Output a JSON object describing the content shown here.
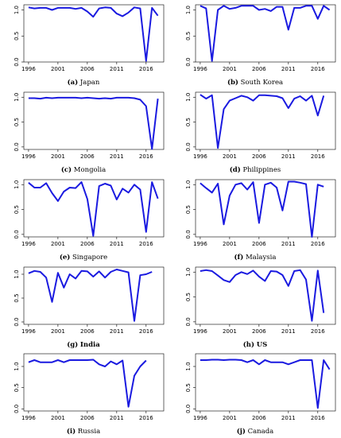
{
  "chart_data": [
    {
      "type": "line",
      "tag": "(a)",
      "caption": "Japan",
      "bold": false,
      "x": [
        1996,
        1997,
        1998,
        1999,
        2000,
        2001,
        2002,
        2003,
        2004,
        2005,
        2006,
        2007,
        2008,
        2009,
        2010,
        2011,
        2012,
        2013,
        2014,
        2015,
        2016,
        2017,
        2018
      ],
      "values": [
        1.05,
        1.03,
        1.04,
        1.04,
        1.0,
        1.04,
        1.04,
        1.04,
        1.02,
        1.04,
        0.97,
        0.87,
        1.03,
        1.05,
        1.04,
        0.93,
        0.88,
        0.95,
        1.05,
        1.03,
        0.02,
        1.04,
        0.89
      ],
      "xticks": [
        1996,
        2001,
        2006,
        2011,
        2016
      ],
      "yticks": [
        "0.0",
        "0.5",
        "1.0"
      ],
      "ylim": [
        0,
        1.1
      ]
    },
    {
      "type": "line",
      "tag": "(b)",
      "caption": "South Korea",
      "bold": false,
      "x": [
        1996,
        1997,
        1998,
        1999,
        2000,
        2001,
        2002,
        2003,
        2004,
        2005,
        2006,
        2007,
        2008,
        2009,
        2010,
        2011,
        2012,
        2013,
        2014,
        2015,
        2016,
        2017,
        2018
      ],
      "values": [
        1.08,
        1.03,
        0.02,
        1.0,
        1.08,
        1.02,
        1.04,
        1.08,
        1.08,
        1.08,
        1.0,
        1.02,
        0.98,
        1.06,
        1.06,
        0.62,
        1.04,
        1.04,
        1.08,
        1.08,
        0.83,
        1.08,
        1.0
      ],
      "xticks": [
        1996,
        2001,
        2006,
        2011,
        2016
      ],
      "yticks": [
        "0.0",
        "0.5",
        "1.0"
      ],
      "ylim": [
        0,
        1.1
      ]
    },
    {
      "type": "line",
      "tag": "(c)",
      "caption": "Mongolia",
      "bold": false,
      "x": [
        1996,
        1997,
        1998,
        1999,
        2000,
        2001,
        2002,
        2003,
        2004,
        2005,
        2006,
        2007,
        2008,
        2009,
        2010,
        2011,
        2012,
        2013,
        2014,
        2015,
        2016,
        2017,
        2018
      ],
      "values": [
        0.98,
        0.98,
        0.97,
        0.99,
        0.98,
        0.99,
        0.99,
        0.99,
        0.99,
        0.98,
        0.99,
        0.98,
        0.97,
        0.98,
        0.97,
        0.99,
        0.99,
        0.99,
        0.98,
        0.95,
        0.82,
        -0.04,
        0.97
      ],
      "xticks": [
        1996,
        2001,
        2006,
        2011,
        2016
      ],
      "yticks": [
        "0.0",
        "0.5",
        "1.0"
      ],
      "ylim": [
        -0.05,
        1.1
      ]
    },
    {
      "type": "line",
      "tag": "(d)",
      "caption": "Philippines",
      "bold": false,
      "x": [
        1996,
        1997,
        1998,
        1999,
        2000,
        2001,
        2002,
        2003,
        2004,
        2005,
        2006,
        2007,
        2008,
        2009,
        2010,
        2011,
        2012,
        2013,
        2014,
        2015,
        2016,
        2017,
        2018
      ],
      "values": [
        1.05,
        0.97,
        1.04,
        -0.02,
        0.76,
        0.93,
        0.98,
        1.03,
        1.0,
        0.93,
        1.04,
        1.04,
        1.03,
        1.02,
        0.98,
        0.78,
        0.97,
        1.02,
        0.93,
        1.03,
        0.63,
        1.03,
        null
      ],
      "xticks": [
        1996,
        2001,
        2006,
        2011,
        2016
      ],
      "yticks": [
        "0.0",
        "0.5",
        "1.0"
      ],
      "ylim": [
        -0.05,
        1.1
      ]
    },
    {
      "type": "line",
      "tag": "(e)",
      "caption": "Singapore",
      "bold": false,
      "x": [
        1996,
        1997,
        1998,
        1999,
        2000,
        2001,
        2002,
        2003,
        2004,
        2005,
        2006,
        2007,
        2008,
        2009,
        2010,
        2011,
        2012,
        2013,
        2014,
        2015,
        2016,
        2017,
        2018
      ],
      "values": [
        1.04,
        0.94,
        0.94,
        1.03,
        0.83,
        0.67,
        0.86,
        0.94,
        0.93,
        1.05,
        0.71,
        -0.03,
        0.97,
        1.02,
        0.98,
        0.7,
        0.92,
        0.84,
        1.0,
        0.9,
        0.05,
        1.05,
        0.72
      ],
      "xticks": [
        1996,
        2001,
        2006,
        2011,
        2016
      ],
      "yticks": [
        "0.0",
        "0.5",
        "1.0"
      ],
      "ylim": [
        -0.05,
        1.1
      ]
    },
    {
      "type": "line",
      "tag": "(f)",
      "caption": "Malaysia",
      "bold": false,
      "x": [
        1996,
        1997,
        1998,
        1999,
        2000,
        2001,
        2002,
        2003,
        2004,
        2005,
        2006,
        2007,
        2008,
        2009,
        2010,
        2011,
        2012,
        2013,
        2014,
        2015,
        2016,
        2017,
        2018
      ],
      "values": [
        1.03,
        0.93,
        0.84,
        1.02,
        0.2,
        0.78,
        1.0,
        1.03,
        0.9,
        1.05,
        0.23,
        1.0,
        1.04,
        0.94,
        0.48,
        1.06,
        1.06,
        1.04,
        1.01,
        -0.05,
        1.0,
        0.96,
        null
      ],
      "xticks": [
        1996,
        2001,
        2006,
        2011,
        2016
      ],
      "yticks": [
        "0.0",
        "0.5",
        "1.0"
      ],
      "ylim": [
        -0.05,
        1.1
      ]
    },
    {
      "type": "line",
      "tag": "(g)",
      "caption": "India",
      "bold": true,
      "x": [
        1996,
        1997,
        1998,
        1999,
        2000,
        2001,
        2002,
        2003,
        2004,
        2005,
        2006,
        2007,
        2008,
        2009,
        2010,
        2011,
        2012,
        2013,
        2014,
        2015,
        2016,
        2017,
        2018
      ],
      "values": [
        1.02,
        1.07,
        1.05,
        0.93,
        0.42,
        1.03,
        0.72,
        1.0,
        0.91,
        1.07,
        1.06,
        0.95,
        1.06,
        0.93,
        1.05,
        1.1,
        1.07,
        1.04,
        0.02,
        0.98,
        1.0,
        1.05,
        null
      ],
      "xticks": [
        1996,
        2001,
        2006,
        2011,
        2016
      ],
      "yticks": [
        "0.0",
        "0.5",
        "1.0"
      ],
      "ylim": [
        -0.05,
        1.15
      ]
    },
    {
      "type": "line",
      "tag": "(h)",
      "caption": "US",
      "bold": true,
      "x": [
        1996,
        1997,
        1998,
        1999,
        2000,
        2001,
        2002,
        2003,
        2004,
        2005,
        2006,
        2007,
        2008,
        2009,
        2010,
        2011,
        2012,
        2013,
        2014,
        2015,
        2016,
        2017,
        2018
      ],
      "values": [
        1.02,
        1.04,
        1.02,
        0.93,
        0.84,
        0.8,
        0.94,
        1.0,
        0.96,
        1.03,
        0.91,
        0.82,
        1.02,
        1.01,
        0.94,
        0.72,
        1.02,
        1.04,
        0.85,
        0.02,
        1.03,
        0.18,
        null
      ],
      "xticks": [
        1996,
        2001,
        2006,
        2011,
        2016
      ],
      "yticks": [
        "0.0",
        "0.5",
        "1.0"
      ],
      "ylim": [
        -0.05,
        1.1
      ]
    },
    {
      "type": "line",
      "tag": "(i)",
      "caption": "Russia",
      "bold": false,
      "x": [
        1996,
        1997,
        1998,
        1999,
        2000,
        2001,
        2002,
        2003,
        2004,
        2005,
        2006,
        2007,
        2008,
        2009,
        2010,
        2011,
        2012,
        2013,
        2014,
        2015,
        2016,
        2017,
        2018
      ],
      "values": [
        1.1,
        1.15,
        1.1,
        1.1,
        1.1,
        1.15,
        1.1,
        1.15,
        1.15,
        1.15,
        1.15,
        1.16,
        1.05,
        1.0,
        1.12,
        1.05,
        1.14,
        0.05,
        0.78,
        1.0,
        1.14,
        null,
        null
      ],
      "xticks": [
        1996,
        2001,
        2006,
        2011,
        2016
      ],
      "yticks": [
        "0.0",
        "0.5",
        "1.0"
      ],
      "ylim": [
        -0.05,
        1.3
      ]
    },
    {
      "type": "line",
      "tag": "(j)",
      "caption": "Canada",
      "bold": false,
      "x": [
        1996,
        1997,
        1998,
        1999,
        2000,
        2001,
        2002,
        2003,
        2004,
        2005,
        2006,
        2007,
        2008,
        2009,
        2010,
        2011,
        2012,
        2013,
        2014,
        2015,
        2016,
        2017,
        2018
      ],
      "values": [
        1.15,
        1.15,
        1.16,
        1.16,
        1.15,
        1.16,
        1.16,
        1.15,
        1.1,
        1.15,
        1.05,
        1.15,
        1.1,
        1.1,
        1.1,
        1.05,
        1.1,
        1.15,
        1.15,
        1.15,
        0.02,
        1.15,
        0.93
      ],
      "xticks": [
        1996,
        2001,
        2006,
        2011,
        2016
      ],
      "yticks": [
        "0.0",
        "0.5",
        "1.0"
      ],
      "ylim": [
        -0.05,
        1.3
      ]
    }
  ],
  "style": {
    "line_color": "#1a1ae0"
  }
}
